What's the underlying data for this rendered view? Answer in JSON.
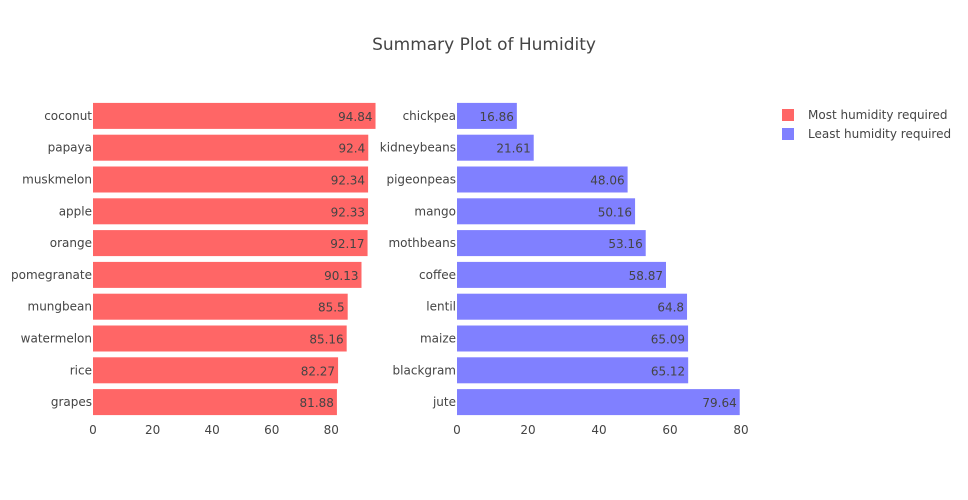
{
  "chart_data": {
    "title": "Summary Plot of Humidity",
    "type": "bar",
    "orientation": "horizontal",
    "legend_position": "top-right",
    "colors": {
      "most": "#ff6666",
      "least": "#8080ff"
    },
    "subplots": [
      {
        "series_name": "Most humidity required",
        "categories": [
          "coconut",
          "papaya",
          "muskmelon",
          "apple",
          "orange",
          "pomegranate",
          "mungbean",
          "watermelon",
          "rice",
          "grapes"
        ],
        "values": [
          94.84,
          92.4,
          92.34,
          92.33,
          92.17,
          90.13,
          85.5,
          85.16,
          82.27,
          81.88
        ],
        "value_labels": [
          "94.84",
          "92.4",
          "92.34",
          "92.33",
          "92.17",
          "90.13",
          "85.5",
          "85.16",
          "82.27",
          "81.88"
        ],
        "xlim": [
          0,
          95
        ],
        "xticks": [
          "0",
          "20",
          "40",
          "60",
          "80"
        ]
      },
      {
        "series_name": "Least humidity required",
        "categories": [
          "chickpea",
          "kidneybeans",
          "pigeonpeas",
          "mango",
          "mothbeans",
          "coffee",
          "lentil",
          "maize",
          "blackgram",
          "jute"
        ],
        "values": [
          16.86,
          21.61,
          48.06,
          50.16,
          53.16,
          58.87,
          64.8,
          65.09,
          65.12,
          79.64
        ],
        "value_labels": [
          "16.86",
          "21.61",
          "48.06",
          "50.16",
          "53.16",
          "58.87",
          "64.8",
          "65.09",
          "65.12",
          "79.64"
        ],
        "xlim": [
          0,
          80
        ],
        "xticks": [
          "0",
          "20",
          "40",
          "60",
          "80"
        ]
      }
    ]
  }
}
